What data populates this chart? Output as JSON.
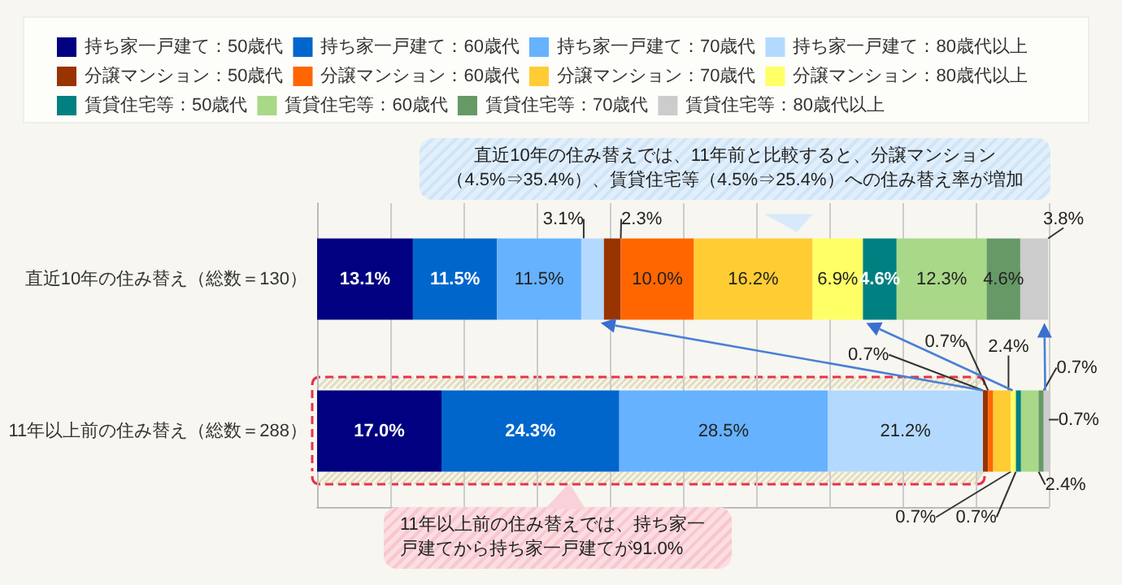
{
  "chart_data": {
    "type": "bar",
    "orientation": "horizontal",
    "stacked": true,
    "categories": [
      "直近10年の住み替え（総数＝130）",
      "11年以上前の住み替え（総数＝288）"
    ],
    "series": [
      {
        "name": "持ち家一戸建て：50歳代",
        "color": "#000080",
        "values": [
          13.1,
          17.0
        ],
        "value_labels": [
          "13.1%",
          "17.0%"
        ]
      },
      {
        "name": "持ち家一戸建て：60歳代",
        "color": "#0066cc",
        "values": [
          11.5,
          24.3
        ],
        "value_labels": [
          "11.5%",
          "24.3%"
        ]
      },
      {
        "name": "持ち家一戸建て：70歳代",
        "color": "#66b2ff",
        "values": [
          11.5,
          28.5
        ],
        "value_labels": [
          "11.5%",
          "28.5%"
        ]
      },
      {
        "name": "持ち家一戸建て：80歳代以上",
        "color": "#b3d9ff",
        "values": [
          3.1,
          21.2
        ],
        "value_labels": [
          "3.1%",
          "21.2%"
        ]
      },
      {
        "name": "分譲マンション：50歳代",
        "color": "#993300",
        "values": [
          2.3,
          0.7
        ],
        "value_labels": [
          "2.3%",
          "0.7%"
        ]
      },
      {
        "name": "分譲マンション：60歳代",
        "color": "#ff6600",
        "values": [
          10.0,
          0.7
        ],
        "value_labels": [
          "10.0%",
          "0.7%"
        ]
      },
      {
        "name": "分譲マンション：70歳代",
        "color": "#ffcc33",
        "values": [
          16.2,
          2.4
        ],
        "value_labels": [
          "16.2%",
          "2.4%"
        ]
      },
      {
        "name": "分譲マンション：80歳代以上",
        "color": "#ffff66",
        "values": [
          6.9,
          0.7
        ],
        "value_labels": [
          "6.9%",
          "0.7%"
        ]
      },
      {
        "name": "賃貸住宅等：50歳代",
        "color": "#008080",
        "values": [
          4.6,
          0.7
        ],
        "value_labels": [
          "4.6%",
          "0.7%"
        ]
      },
      {
        "name": "賃貸住宅等：60歳代",
        "color": "#a8d888",
        "values": [
          12.3,
          2.4
        ],
        "value_labels": [
          "12.3%",
          "2.4%"
        ]
      },
      {
        "name": "賃貸住宅等：70歳代",
        "color": "#669966",
        "values": [
          4.6,
          0.7
        ],
        "value_labels": [
          "4.6%",
          "0.7%"
        ]
      },
      {
        "name": "賃貸住宅等：80歳代以上",
        "color": "#cccccc",
        "values": [
          3.8,
          0.7
        ],
        "value_labels": [
          "3.8%",
          "0.7%"
        ]
      }
    ],
    "xlim": [
      0,
      100
    ],
    "xticks": [
      {
        "value": 0,
        "label": null
      },
      {
        "value": 10,
        "label": null
      },
      {
        "value": 20,
        "label": null
      },
      {
        "value": 30,
        "label": null
      },
      {
        "value": 40,
        "label": null
      },
      {
        "value": 50,
        "label": null
      },
      {
        "value": 60,
        "label": null
      },
      {
        "value": 70,
        "label": null
      },
      {
        "value": 80,
        "label": null
      },
      {
        "value": 90,
        "label": null
      },
      {
        "value": 100,
        "label": null
      }
    ],
    "tick_labels": "y",
    "grid": "x",
    "legend": "top",
    "annotations": [
      "直近10年の住み替えでは、11年前と比較すると、分譲マンション（4.5%⇒35.4%）、賃貸住宅等（4.5%⇒25.4%）への住み替え率が増加",
      "11年以上前の住み替えでは、持ち家一戸建てから持ち家一戸建てが91.0%"
    ]
  }
}
